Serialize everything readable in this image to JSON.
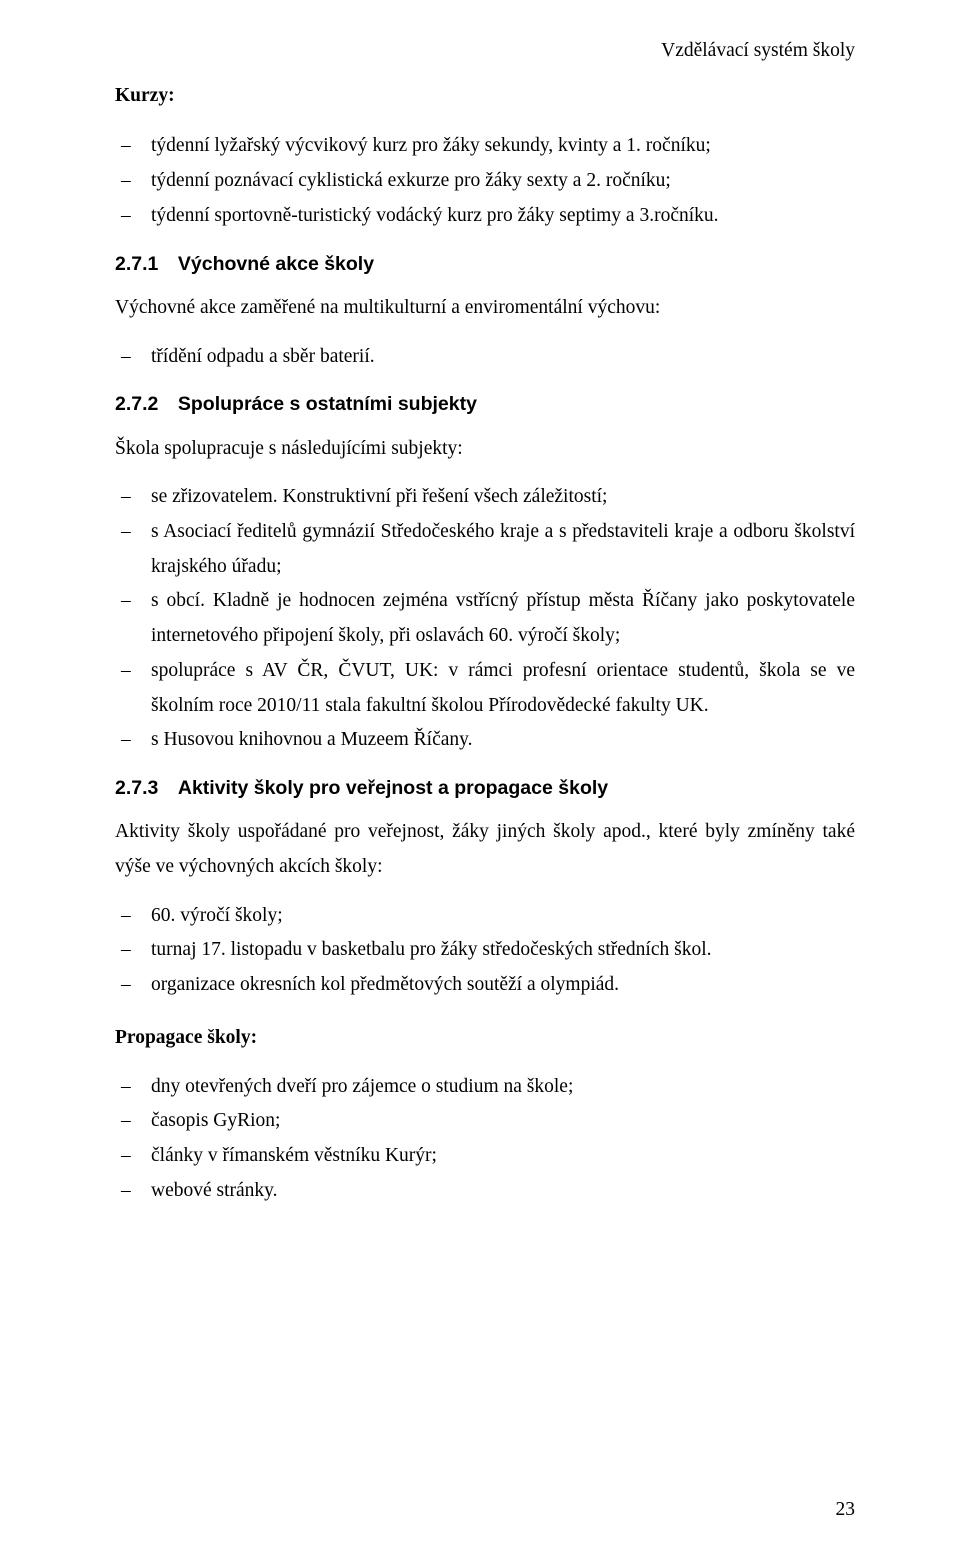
{
  "running_header": "Vzdělávací systém školy",
  "kurzy_label": "Kurzy",
  "kurzy_items": [
    "týdenní lyžařský výcvikový kurz pro žáky sekundy, kvinty a 1. ročníku;",
    "týdenní poznávací cyklistická exkurze pro žáky sexty a 2. ročníku;",
    "týdenní sportovně-turistický vodácký kurz pro žáky septimy a 3.ročníku."
  ],
  "sec271_title": "2.7.1 Výchovné akce školy",
  "sec271_intro": "Výchovné akce zaměřené na multikulturní a enviromentální výchovu:",
  "sec271_items": [
    "třídění odpadu a sběr baterií."
  ],
  "sec272_title": "2.7.2 Spolupráce s ostatními subjekty",
  "sec272_intro": "Škola spolupracuje s následujícími subjekty:",
  "sec272_items": [
    "se zřizovatelem. Konstruktivní při řešení všech záležitostí;",
    "s Asociací ředitelů gymnázií Středočeského kraje a s představiteli kraje a odboru školství krajského úřadu;",
    "s obcí. Kladně je hodnocen zejména vstřícný přístup města Říčany jako poskytovatele internetového připojení školy, při oslavách 60. výročí školy;",
    "spolupráce s AV ČR, ČVUT, UK: v rámci profesní orientace studentů, škola se ve školním roce 2010/11 stala fakultní školou Přírodovědecké fakulty UK.",
    "s Husovou knihovnou a Muzeem Říčany."
  ],
  "sec273_title": "2.7.3 Aktivity školy pro veřejnost a propagace školy",
  "sec273_intro": "Aktivity školy uspořádané pro veřejnost, žáky jiných školy apod., které byly zmíněny také výše ve výchovných akcích školy:",
  "sec273_items": [
    "60. výročí školy;",
    "turnaj 17. listopadu v basketbalu pro žáky středočeských středních škol.",
    "organizace okresních kol předmětových soutěží a olympiád."
  ],
  "propagace_label": "Propagace školy:",
  "propagace_items": [
    "dny otevřených dveří pro zájemce o studium na škole;",
    "časopis GyRion;",
    "články v římanském věstníku Kurýr;",
    "webové stránky."
  ],
  "page_number": "23"
}
